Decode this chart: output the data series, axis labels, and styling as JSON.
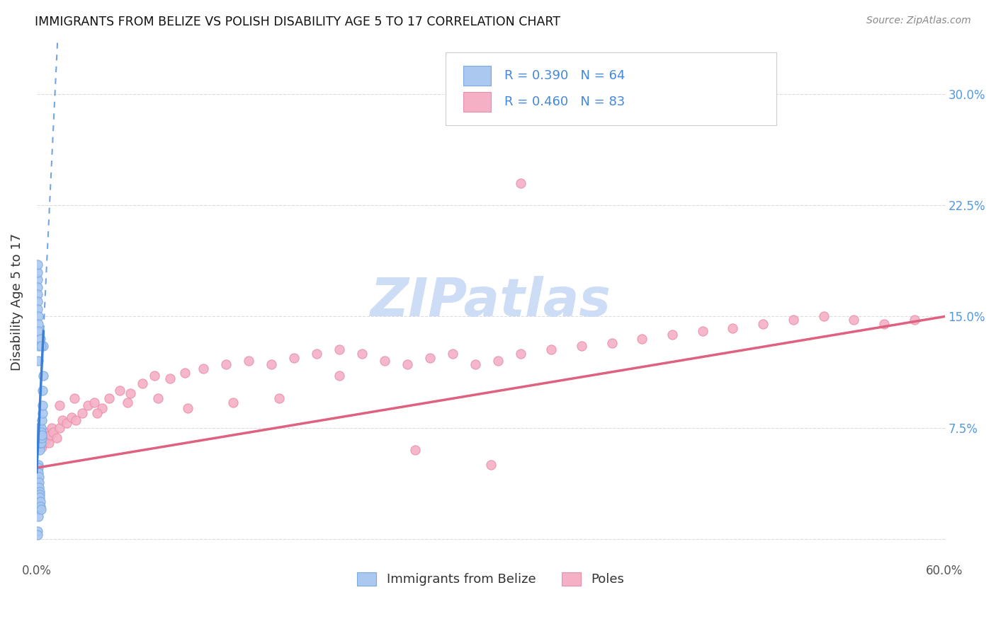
{
  "title": "IMMIGRANTS FROM BELIZE VS POLISH DISABILITY AGE 5 TO 17 CORRELATION CHART",
  "source": "Source: ZipAtlas.com",
  "ylabel": "Disability Age 5 to 17",
  "xmin": 0.0,
  "xmax": 0.6,
  "ymin": -0.015,
  "ymax": 0.335,
  "belize_color": "#aac8f0",
  "belize_edge": "#7aaae0",
  "poles_color": "#f5b0c5",
  "poles_edge": "#e890a8",
  "belize_trend_color": "#3a7fd5",
  "poles_trend_color": "#e06080",
  "watermark_color": "#ccddf5",
  "legend_color": "#4488dd",
  "belize_x": [
    0.0008,
    0.001,
    0.001,
    0.0012,
    0.0013,
    0.0015,
    0.0015,
    0.0016,
    0.0018,
    0.0018,
    0.002,
    0.002,
    0.0022,
    0.0022,
    0.0023,
    0.0025,
    0.0025,
    0.0026,
    0.0028,
    0.0028,
    0.003,
    0.003,
    0.0032,
    0.0033,
    0.0035,
    0.0038,
    0.004,
    0.004,
    0.0042,
    0.0045,
    0.0005,
    0.0006,
    0.0007,
    0.0008,
    0.0009,
    0.001,
    0.001,
    0.0012,
    0.0012,
    0.0014,
    0.0015,
    0.0016,
    0.0018,
    0.002,
    0.0022,
    0.0024,
    0.0026,
    0.0028,
    0.0005,
    0.0007,
    0.0005,
    0.0006,
    0.0006,
    0.0007,
    0.0007,
    0.0008,
    0.0008,
    0.0009,
    0.0009,
    0.001,
    0.001,
    0.0012,
    0.0025,
    0.003
  ],
  "belize_y": [
    0.07,
    0.065,
    0.075,
    0.07,
    0.065,
    0.068,
    0.072,
    0.07,
    0.065,
    0.068,
    0.06,
    0.075,
    0.065,
    0.07,
    0.072,
    0.065,
    0.068,
    0.07,
    0.075,
    0.068,
    0.065,
    0.072,
    0.068,
    0.07,
    0.08,
    0.085,
    0.09,
    0.1,
    0.11,
    0.13,
    0.04,
    0.035,
    0.03,
    0.025,
    0.02,
    0.015,
    0.05,
    0.048,
    0.045,
    0.042,
    0.038,
    0.035,
    0.032,
    0.03,
    0.028,
    0.025,
    0.022,
    0.02,
    0.005,
    0.003,
    0.175,
    0.18,
    0.185,
    0.17,
    0.165,
    0.16,
    0.155,
    0.15,
    0.145,
    0.14,
    0.13,
    0.12,
    0.135,
    0.13
  ],
  "poles_x": [
    0.0008,
    0.001,
    0.0012,
    0.0015,
    0.0018,
    0.002,
    0.0022,
    0.0025,
    0.0028,
    0.003,
    0.0032,
    0.0035,
    0.0038,
    0.004,
    0.0045,
    0.0048,
    0.005,
    0.0055,
    0.006,
    0.0065,
    0.007,
    0.008,
    0.009,
    0.01,
    0.011,
    0.013,
    0.015,
    0.017,
    0.02,
    0.023,
    0.026,
    0.03,
    0.034,
    0.038,
    0.043,
    0.048,
    0.055,
    0.062,
    0.07,
    0.078,
    0.088,
    0.098,
    0.11,
    0.125,
    0.14,
    0.155,
    0.17,
    0.185,
    0.2,
    0.215,
    0.23,
    0.245,
    0.26,
    0.275,
    0.29,
    0.305,
    0.32,
    0.34,
    0.36,
    0.38,
    0.4,
    0.42,
    0.44,
    0.46,
    0.48,
    0.5,
    0.52,
    0.54,
    0.56,
    0.58,
    0.015,
    0.025,
    0.04,
    0.06,
    0.08,
    0.1,
    0.13,
    0.16,
    0.2,
    0.25,
    0.3,
    0.42,
    0.32
  ],
  "poles_y": [
    0.075,
    0.072,
    0.068,
    0.07,
    0.065,
    0.072,
    0.068,
    0.065,
    0.07,
    0.068,
    0.065,
    0.062,
    0.068,
    0.065,
    0.07,
    0.068,
    0.065,
    0.07,
    0.068,
    0.072,
    0.068,
    0.065,
    0.07,
    0.075,
    0.072,
    0.068,
    0.075,
    0.08,
    0.078,
    0.082,
    0.08,
    0.085,
    0.09,
    0.092,
    0.088,
    0.095,
    0.1,
    0.098,
    0.105,
    0.11,
    0.108,
    0.112,
    0.115,
    0.118,
    0.12,
    0.118,
    0.122,
    0.125,
    0.128,
    0.125,
    0.12,
    0.118,
    0.122,
    0.125,
    0.118,
    0.12,
    0.125,
    0.128,
    0.13,
    0.132,
    0.135,
    0.138,
    0.14,
    0.142,
    0.145,
    0.148,
    0.15,
    0.148,
    0.145,
    0.148,
    0.09,
    0.095,
    0.085,
    0.092,
    0.095,
    0.088,
    0.092,
    0.095,
    0.11,
    0.06,
    0.05,
    0.295,
    0.24
  ],
  "belize_trend_x0": 0.0,
  "belize_trend_y0": 0.045,
  "belize_trend_x1": 0.0045,
  "belize_trend_y1": 0.14,
  "belize_trend_xdash0": 0.0045,
  "belize_trend_xdash1": 0.6,
  "poles_trend_x0": 0.0,
  "poles_trend_y0": 0.048,
  "poles_trend_x1": 0.6,
  "poles_trend_y1": 0.15
}
